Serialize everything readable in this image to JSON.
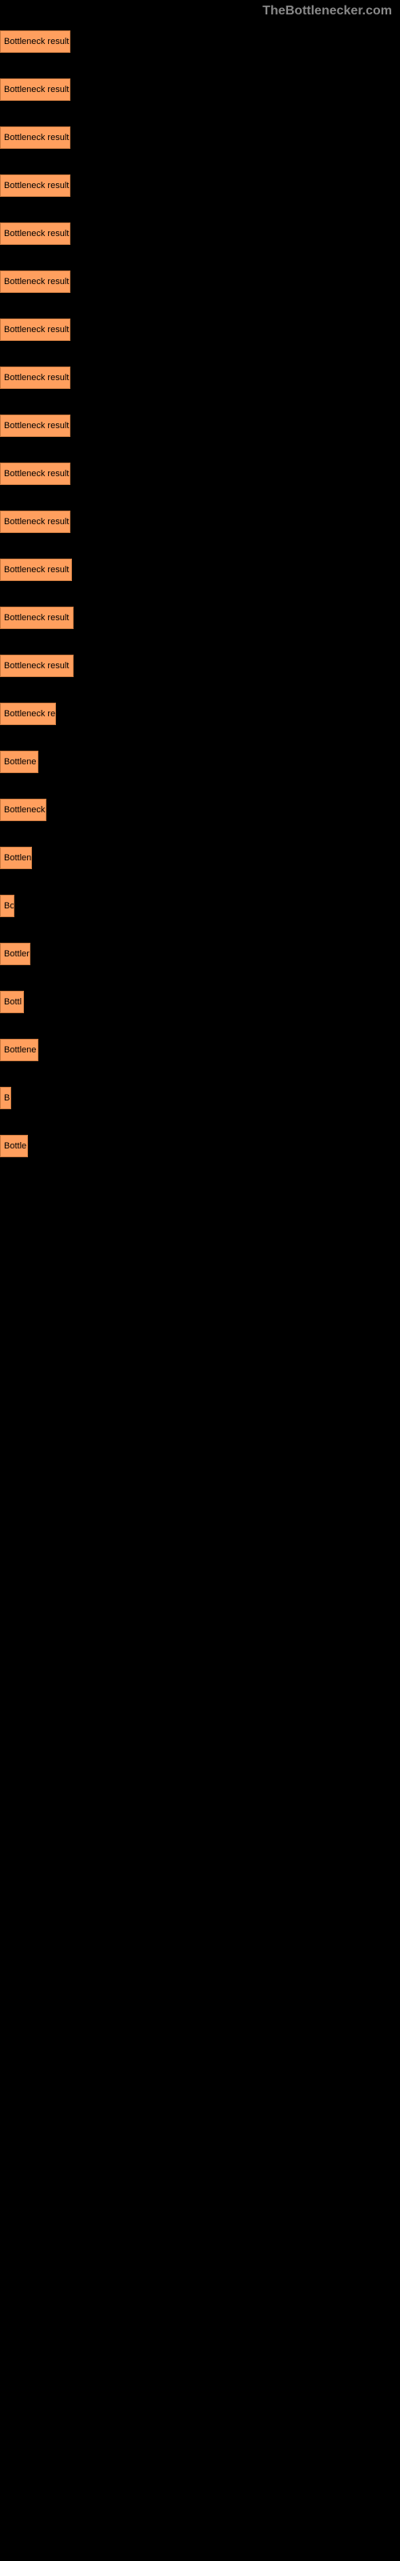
{
  "header": {
    "site_name": "TheBottlenecker.com"
  },
  "chart": {
    "type": "bar",
    "bar_color": "#ff9f5e",
    "bar_border_color": "#cc7a3f",
    "background_color": "#000000",
    "text_color": "#000000",
    "label_fontsize": 11,
    "bars": [
      {
        "label": "Bottleneck result",
        "width": 88
      },
      {
        "label": "Bottleneck result",
        "width": 88
      },
      {
        "label": "Bottleneck result",
        "width": 88
      },
      {
        "label": "Bottleneck result",
        "width": 88
      },
      {
        "label": "Bottleneck result",
        "width": 88
      },
      {
        "label": "Bottleneck result",
        "width": 88
      },
      {
        "label": "Bottleneck result",
        "width": 88
      },
      {
        "label": "Bottleneck result",
        "width": 88
      },
      {
        "label": "Bottleneck result",
        "width": 88
      },
      {
        "label": "Bottleneck result",
        "width": 88
      },
      {
        "label": "Bottleneck result",
        "width": 88
      },
      {
        "label": "Bottleneck result",
        "width": 90
      },
      {
        "label": "Bottleneck result",
        "width": 92
      },
      {
        "label": "Bottleneck result",
        "width": 92
      },
      {
        "label": "Bottleneck re",
        "width": 70
      },
      {
        "label": "Bottlene",
        "width": 48
      },
      {
        "label": "Bottleneck",
        "width": 58
      },
      {
        "label": "Bottlen",
        "width": 40
      },
      {
        "label": "Bo",
        "width": 18
      },
      {
        "label": "Bottler",
        "width": 38
      },
      {
        "label": "Bottl",
        "width": 30
      },
      {
        "label": "Bottlene",
        "width": 48
      },
      {
        "label": "B",
        "width": 14
      },
      {
        "label": "Bottle",
        "width": 35
      }
    ]
  }
}
